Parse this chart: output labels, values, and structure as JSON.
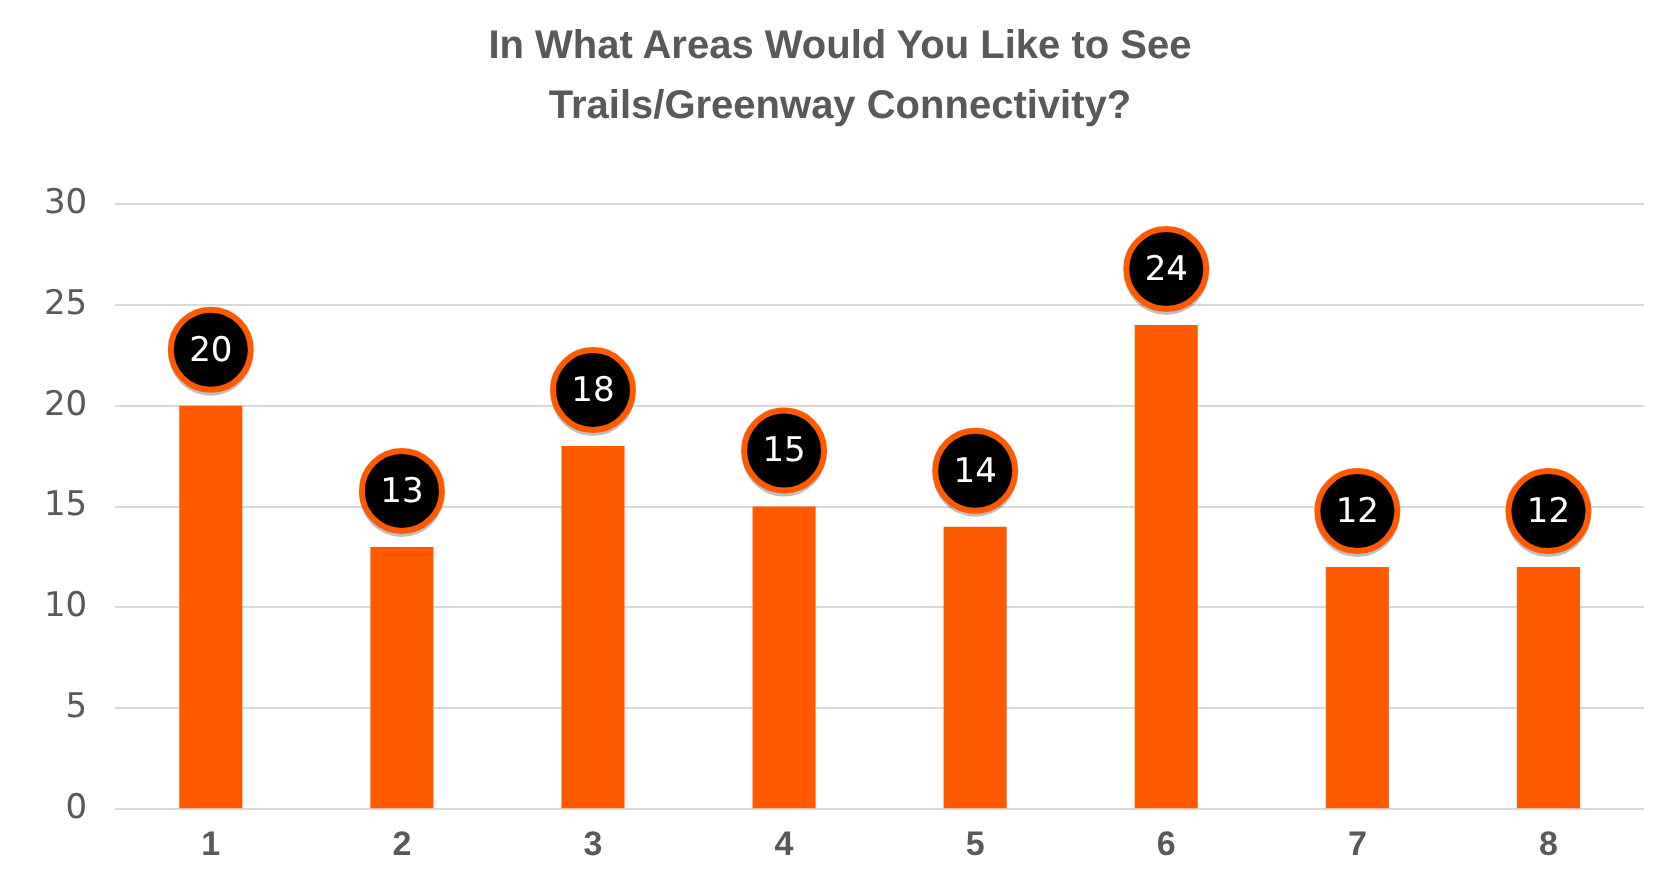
{
  "chart_data": {
    "type": "bar",
    "title": "In What Areas Would You Like to See Trails/Greenway Connectivity?",
    "categories": [
      "1",
      "2",
      "3",
      "4",
      "5",
      "6",
      "7",
      "8"
    ],
    "values": [
      20,
      13,
      18,
      15,
      14,
      24,
      12,
      12
    ],
    "color": "#ff5a00",
    "ylim": [
      0,
      30
    ],
    "yticks": [
      0,
      5,
      10,
      15,
      20,
      25,
      30
    ],
    "grid": "y",
    "data_labels": true,
    "legend": false
  }
}
